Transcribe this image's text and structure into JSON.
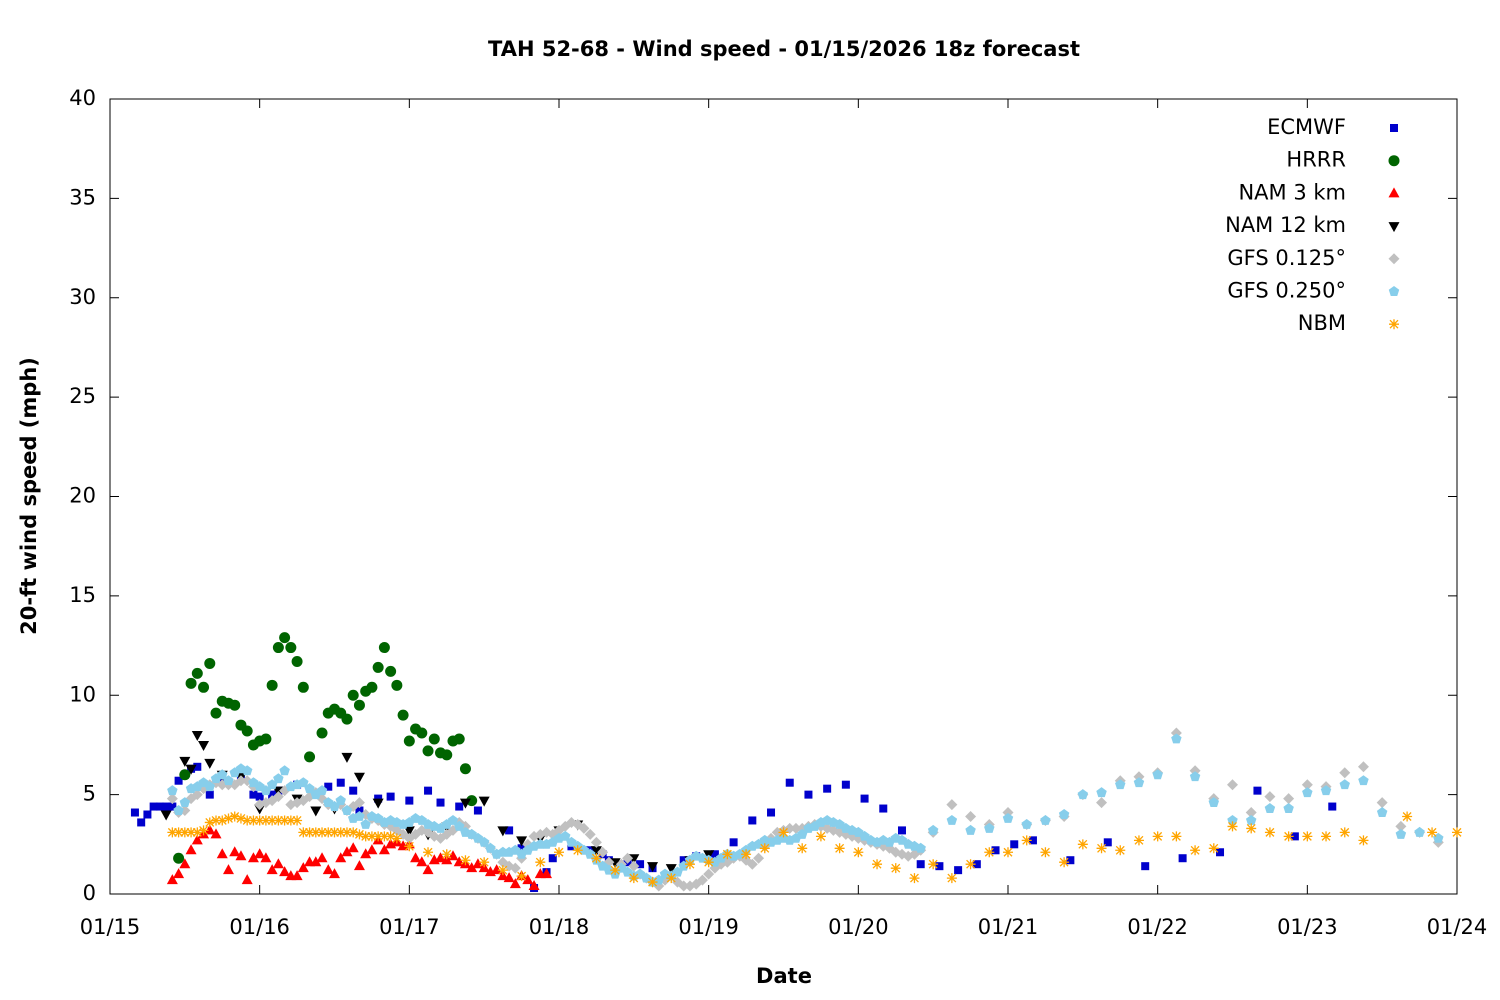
{
  "chart_data": {
    "type": "scatter",
    "title": "TAH 52-68 - Wind speed - 01/15/2026 18z forecast",
    "xlabel": "Date",
    "ylabel": "20-ft wind speed (mph)",
    "xlim": [
      0,
      216
    ],
    "xticks": [
      {
        "value": 0,
        "label": "01/15"
      },
      {
        "value": 24,
        "label": "01/16"
      },
      {
        "value": 48,
        "label": "01/17"
      },
      {
        "value": 72,
        "label": "01/18"
      },
      {
        "value": 96,
        "label": "01/19"
      },
      {
        "value": 120,
        "label": "01/20"
      },
      {
        "value": 144,
        "label": "01/21"
      },
      {
        "value": 168,
        "label": "01/22"
      },
      {
        "value": 192,
        "label": "01/23"
      },
      {
        "value": 216,
        "label": "01/24"
      }
    ],
    "ylim": [
      0,
      40
    ],
    "yticks": [
      0,
      5,
      10,
      15,
      20,
      25,
      30,
      35,
      40
    ],
    "legend": "top right",
    "series": [
      {
        "name": "ECMWF",
        "color": "#0000cc",
        "marker": "square",
        "x": [
          4,
          5,
          6,
          7,
          8,
          9,
          10,
          11,
          12,
          13,
          14,
          16,
          18,
          21,
          23,
          24,
          26,
          27,
          30,
          35,
          37,
          39,
          40,
          43,
          45,
          48,
          51,
          53,
          56,
          59,
          64,
          66,
          68,
          70,
          71,
          74,
          77,
          79,
          80,
          83,
          85,
          87,
          90,
          92,
          94,
          97,
          100,
          103,
          106,
          109,
          112,
          115,
          118,
          121,
          124,
          127,
          130,
          133,
          136,
          139,
          142,
          145,
          148,
          154,
          160,
          166,
          172,
          178,
          184,
          190,
          196
        ],
        "values": [
          4.1,
          3.6,
          4.0,
          4.4,
          4.4,
          4.4,
          4.4,
          5.7,
          6.0,
          6.3,
          6.4,
          5.0,
          5.7,
          5.8,
          5.0,
          4.9,
          5.0,
          5.2,
          5.5,
          5.4,
          5.6,
          5.2,
          4.2,
          4.8,
          4.9,
          4.7,
          5.2,
          4.6,
          4.4,
          4.2,
          3.2,
          2.3,
          0.3,
          1.1,
          1.8,
          2.4,
          2.2,
          2.0,
          1.7,
          1.6,
          1.5,
          1.3,
          0.9,
          1.7,
          1.9,
          2.0,
          2.6,
          3.7,
          4.1,
          5.6,
          5.0,
          5.3,
          5.5,
          4.8,
          4.3,
          3.2,
          1.5,
          1.4,
          1.2,
          1.5,
          2.2,
          2.5,
          2.7,
          1.7,
          2.6,
          1.4,
          1.8,
          2.1,
          5.2,
          2.9,
          4.4
        ]
      },
      {
        "name": "HRRR",
        "color": "#006400",
        "marker": "circle",
        "x": [
          11,
          12,
          13,
          14,
          15,
          16,
          17,
          18,
          19,
          20,
          21,
          22,
          23,
          24,
          25,
          26,
          27,
          28,
          29,
          30,
          31,
          32,
          34,
          35,
          36,
          37,
          38,
          39,
          40,
          41,
          42,
          43,
          44,
          45,
          46,
          47,
          48,
          49,
          50,
          51,
          52,
          53,
          54,
          55,
          56,
          57,
          58
        ],
        "values": [
          1.8,
          6.0,
          10.6,
          11.1,
          10.4,
          11.6,
          9.1,
          9.7,
          9.6,
          9.5,
          8.5,
          8.2,
          7.5,
          7.7,
          7.8,
          10.5,
          12.4,
          12.9,
          12.4,
          11.7,
          10.4,
          6.9,
          8.1,
          9.1,
          9.3,
          9.1,
          8.8,
          10.0,
          9.5,
          10.2,
          10.4,
          11.4,
          12.4,
          11.2,
          10.5,
          9.0,
          7.7,
          8.3,
          8.1,
          7.2,
          7.8,
          7.1,
          7.0,
          7.7,
          7.8,
          6.3,
          4.7
        ]
      },
      {
        "name": "NAM 3 km",
        "color": "#ff0000",
        "marker": "triangle-up",
        "x": [
          10,
          11,
          12,
          13,
          14,
          15,
          16,
          17,
          18,
          19,
          20,
          21,
          22,
          23,
          24,
          25,
          26,
          27,
          28,
          29,
          30,
          31,
          32,
          33,
          34,
          35,
          36,
          37,
          38,
          39,
          40,
          41,
          42,
          43,
          44,
          45,
          46,
          47,
          48,
          49,
          50,
          51,
          52,
          53,
          54,
          55,
          56,
          57,
          58,
          59,
          60,
          61,
          62,
          63,
          64,
          65,
          66,
          67,
          68,
          69,
          70
        ],
        "values": [
          0.7,
          1.0,
          1.5,
          2.2,
          2.7,
          3.0,
          3.2,
          3.0,
          2.0,
          1.2,
          2.1,
          1.9,
          0.7,
          1.8,
          2.0,
          1.8,
          1.2,
          1.5,
          1.1,
          0.9,
          0.9,
          1.3,
          1.6,
          1.6,
          1.8,
          1.2,
          1.0,
          1.8,
          2.1,
          2.3,
          1.4,
          2.0,
          2.2,
          2.7,
          2.2,
          2.5,
          2.6,
          2.4,
          2.5,
          1.8,
          1.6,
          1.2,
          1.7,
          1.8,
          1.7,
          1.9,
          1.6,
          1.5,
          1.3,
          1.5,
          1.3,
          1.1,
          1.2,
          0.9,
          0.8,
          0.5,
          0.9,
          0.7,
          0.4,
          1.0,
          1.0
        ]
      },
      {
        "name": "NAM 12 km",
        "color": "#000000",
        "marker": "triangle-down",
        "x": [
          9,
          12,
          13,
          14,
          15,
          16,
          18,
          21,
          24,
          27,
          30,
          33,
          36,
          38,
          40,
          43,
          45,
          48,
          51,
          54,
          57,
          60,
          63,
          66,
          69,
          72,
          75,
          78,
          81,
          84,
          87,
          90,
          93,
          96
        ],
        "values": [
          4.0,
          6.7,
          6.3,
          8.0,
          7.5,
          6.6,
          6.0,
          5.9,
          4.3,
          5.2,
          4.8,
          4.2,
          4.3,
          6.9,
          5.9,
          4.6,
          3.6,
          3.2,
          3.0,
          3.4,
          4.6,
          4.7,
          3.2,
          2.7,
          2.8,
          3.2,
          3.5,
          2.2,
          1.6,
          1.8,
          1.4,
          1.3,
          1.7,
          2.0
        ]
      },
      {
        "name": "GFS 0.125°",
        "color": "#c0c0c0",
        "marker": "diamond",
        "x": [
          10,
          11,
          12,
          13,
          14,
          15,
          16,
          17,
          18,
          19,
          20,
          21,
          22,
          23,
          24,
          25,
          26,
          27,
          28,
          29,
          30,
          31,
          32,
          33,
          34,
          35,
          36,
          37,
          38,
          39,
          40,
          41,
          42,
          43,
          44,
          45,
          46,
          47,
          48,
          49,
          50,
          51,
          52,
          53,
          54,
          55,
          56,
          57,
          58,
          59,
          60,
          61,
          62,
          63,
          64,
          65,
          66,
          67,
          68,
          69,
          70,
          71,
          72,
          73,
          74,
          75,
          76,
          77,
          78,
          79,
          80,
          81,
          82,
          83,
          84,
          85,
          86,
          87,
          88,
          89,
          90,
          91,
          92,
          93,
          94,
          95,
          96,
          97,
          98,
          99,
          100,
          101,
          102,
          103,
          104,
          105,
          106,
          107,
          108,
          109,
          110,
          111,
          112,
          113,
          114,
          115,
          116,
          117,
          118,
          119,
          120,
          121,
          122,
          123,
          124,
          125,
          126,
          127,
          128,
          129,
          130,
          132,
          135,
          138,
          141,
          144,
          147,
          150,
          153,
          156,
          159,
          162,
          165,
          168,
          171,
          174,
          177,
          180,
          183,
          186,
          189,
          192,
          195,
          198,
          201,
          204,
          207,
          210,
          213
        ],
        "values": [
          4.8,
          4.1,
          4.2,
          4.8,
          5.0,
          5.3,
          5.5,
          5.6,
          5.5,
          5.5,
          5.5,
          5.7,
          5.7,
          5.4,
          4.5,
          4.6,
          4.7,
          4.9,
          5.2,
          4.5,
          4.6,
          4.7,
          4.9,
          5.1,
          4.8,
          4.5,
          4.4,
          4.5,
          4.2,
          4.4,
          4.6,
          4.0,
          3.8,
          3.7,
          3.5,
          3.4,
          3.2,
          3.0,
          2.8,
          3.0,
          3.2,
          3.1,
          2.9,
          2.8,
          3.0,
          3.2,
          3.6,
          3.4,
          3.0,
          2.8,
          2.6,
          2.3,
          2.0,
          1.6,
          1.4,
          1.3,
          1.8,
          2.5,
          2.9,
          3.0,
          3.1,
          3.0,
          3.2,
          3.4,
          3.6,
          3.5,
          3.3,
          3.0,
          2.6,
          2.1,
          1.6,
          1.1,
          1.5,
          1.8,
          1.4,
          1.0,
          0.8,
          0.6,
          0.4,
          0.7,
          0.9,
          0.6,
          0.4,
          0.4,
          0.5,
          0.7,
          1.0,
          1.3,
          1.5,
          1.6,
          1.8,
          1.9,
          1.7,
          1.5,
          1.8,
          2.4,
          2.8,
          3.1,
          3.2,
          3.3,
          3.3,
          3.3,
          3.4,
          3.5,
          3.4,
          3.3,
          3.2,
          3.1,
          3.0,
          2.9,
          2.8,
          2.7,
          2.6,
          2.5,
          2.4,
          2.3,
          2.1,
          2.0,
          1.9,
          2.0,
          2.2,
          3.1,
          4.5,
          3.9,
          3.5,
          4.1,
          3.5,
          3.7,
          3.9,
          5.0,
          4.6,
          5.7,
          5.9,
          6.1,
          8.1,
          6.2,
          4.8,
          5.5,
          4.1,
          4.9,
          4.8,
          5.5,
          5.4,
          6.1,
          6.4,
          4.6,
          3.4,
          3.1,
          2.6
        ]
      },
      {
        "name": "GFS 0.250°",
        "color": "#87ceeb",
        "marker": "pentagon",
        "x": [
          10,
          11,
          12,
          13,
          14,
          15,
          16,
          17,
          18,
          19,
          20,
          21,
          22,
          23,
          24,
          25,
          26,
          27,
          28,
          29,
          30,
          31,
          32,
          33,
          34,
          35,
          36,
          37,
          38,
          39,
          40,
          41,
          42,
          43,
          44,
          45,
          46,
          47,
          48,
          49,
          50,
          51,
          52,
          53,
          54,
          55,
          56,
          57,
          58,
          59,
          60,
          61,
          62,
          63,
          64,
          65,
          66,
          67,
          68,
          69,
          70,
          71,
          72,
          73,
          74,
          75,
          76,
          77,
          78,
          79,
          80,
          81,
          82,
          83,
          84,
          85,
          86,
          87,
          88,
          89,
          90,
          91,
          92,
          93,
          94,
          95,
          96,
          97,
          98,
          99,
          100,
          101,
          102,
          103,
          104,
          105,
          106,
          107,
          108,
          109,
          110,
          111,
          112,
          113,
          114,
          115,
          116,
          117,
          118,
          119,
          120,
          121,
          122,
          123,
          124,
          125,
          126,
          127,
          128,
          129,
          130,
          132,
          135,
          138,
          141,
          144,
          147,
          150,
          153,
          156,
          159,
          162,
          165,
          168,
          171,
          174,
          177,
          180,
          183,
          186,
          189,
          192,
          195,
          198,
          201,
          204,
          207,
          210,
          213
        ],
        "values": [
          5.2,
          4.2,
          4.6,
          5.3,
          5.4,
          5.6,
          5.4,
          5.8,
          6.0,
          5.7,
          6.1,
          6.3,
          6.2,
          5.6,
          5.4,
          5.2,
          5.5,
          5.8,
          6.2,
          5.4,
          5.5,
          5.6,
          5.3,
          5.0,
          5.2,
          4.6,
          4.4,
          4.7,
          4.2,
          3.8,
          3.9,
          3.5,
          3.9,
          3.8,
          3.6,
          3.7,
          3.6,
          3.5,
          3.6,
          3.8,
          3.7,
          3.5,
          3.4,
          3.3,
          3.5,
          3.7,
          3.4,
          3.1,
          3.0,
          2.8,
          2.6,
          2.3,
          2.0,
          2.1,
          2.1,
          2.2,
          2.0,
          2.2,
          2.4,
          2.5,
          2.5,
          2.6,
          2.8,
          2.9,
          2.6,
          2.4,
          2.2,
          2.0,
          1.7,
          1.4,
          1.2,
          1.0,
          1.3,
          1.1,
          0.9,
          1.0,
          0.8,
          0.6,
          0.7,
          1.0,
          0.9,
          1.1,
          1.4,
          1.7,
          1.9,
          1.8,
          1.7,
          1.6,
          1.8,
          2.0,
          1.9,
          2.0,
          2.2,
          2.4,
          2.5,
          2.7,
          2.6,
          2.7,
          2.8,
          2.7,
          2.8,
          3.0,
          3.3,
          3.4,
          3.6,
          3.7,
          3.6,
          3.5,
          3.3,
          3.2,
          3.1,
          2.9,
          2.7,
          2.6,
          2.7,
          2.6,
          2.8,
          2.7,
          2.5,
          2.4,
          2.3,
          3.2,
          3.7,
          3.2,
          3.3,
          3.8,
          3.5,
          3.7,
          4.0,
          5.0,
          5.1,
          5.5,
          5.6,
          6.0,
          7.8,
          5.9,
          4.6,
          3.7,
          3.7,
          4.3,
          4.3,
          5.1,
          5.2,
          5.5,
          5.7,
          4.1,
          3.0,
          3.1,
          2.8
        ]
      },
      {
        "name": "NBM",
        "color": "#ffa500",
        "marker": "asterisk",
        "x": [
          10,
          11,
          12,
          13,
          14,
          15,
          16,
          17,
          18,
          19,
          20,
          21,
          22,
          23,
          24,
          25,
          26,
          27,
          28,
          29,
          30,
          31,
          32,
          33,
          34,
          35,
          36,
          37,
          38,
          39,
          40,
          41,
          42,
          43,
          44,
          45,
          46,
          48,
          51,
          54,
          57,
          60,
          63,
          66,
          69,
          72,
          75,
          78,
          81,
          84,
          87,
          90,
          93,
          96,
          99,
          102,
          105,
          108,
          111,
          114,
          117,
          120,
          123,
          126,
          129,
          132,
          135,
          138,
          141,
          144,
          147,
          150,
          153,
          156,
          159,
          162,
          165,
          168,
          171,
          174,
          177,
          180,
          183,
          186,
          189,
          192,
          195,
          198,
          201,
          208,
          212,
          216
        ],
        "values": [
          3.1,
          3.1,
          3.1,
          3.1,
          3.1,
          3.2,
          3.6,
          3.7,
          3.7,
          3.8,
          3.9,
          3.8,
          3.7,
          3.7,
          3.7,
          3.7,
          3.7,
          3.7,
          3.7,
          3.7,
          3.7,
          3.1,
          3.1,
          3.1,
          3.1,
          3.1,
          3.1,
          3.1,
          3.1,
          3.1,
          3.0,
          2.9,
          2.9,
          2.9,
          2.9,
          2.9,
          2.8,
          2.4,
          2.1,
          2.0,
          1.7,
          1.6,
          1.2,
          0.9,
          1.6,
          2.1,
          2.2,
          1.8,
          1.2,
          0.8,
          0.6,
          0.8,
          1.5,
          1.6,
          2.0,
          2.0,
          2.3,
          3.1,
          2.3,
          2.9,
          2.3,
          2.1,
          1.5,
          1.3,
          0.8,
          1.5,
          0.8,
          1.5,
          2.1,
          2.1,
          2.7,
          2.1,
          1.6,
          2.5,
          2.3,
          2.2,
          2.7,
          2.9,
          2.9,
          2.2,
          2.3,
          3.4,
          3.3,
          3.1,
          2.9,
          2.9,
          2.9,
          3.1,
          2.7,
          3.9,
          3.1,
          3.1
        ]
      }
    ]
  }
}
